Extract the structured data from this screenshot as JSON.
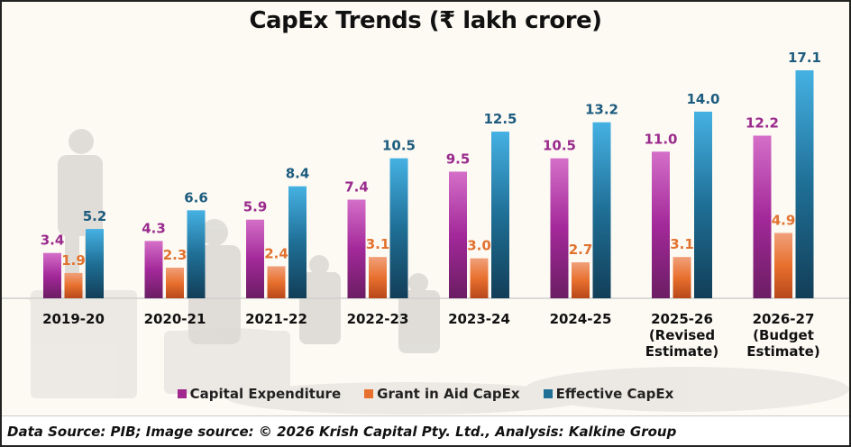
{
  "chart_data": {
    "type": "bar",
    "title": "CapEx Trends (₹ lakh crore)",
    "xlabel": "",
    "ylabel": "",
    "ylim": [
      0,
      17.1
    ],
    "grid": false,
    "legend_position": "bottom",
    "categories": [
      [
        "2019-20"
      ],
      [
        "2020-21"
      ],
      [
        "2021-22"
      ],
      [
        "2022-23"
      ],
      [
        "2023-24"
      ],
      [
        "2024-25"
      ],
      [
        "2025-26",
        "(Revised",
        "Estimate)"
      ],
      [
        "2026-27",
        "(Budget",
        "Estimate)"
      ]
    ],
    "series": [
      {
        "name": "Capital Expenditure",
        "color": "#a0288f",
        "label_color": "#9a2a8c",
        "values": [
          3.4,
          4.3,
          5.9,
          7.4,
          9.5,
          10.5,
          11.0,
          12.2
        ],
        "labels": [
          "3.4",
          "4.3",
          "5.9",
          "7.4",
          "9.5",
          "10.5",
          "11.0",
          "12.2"
        ]
      },
      {
        "name": "Grant in Aid CapEx",
        "color": "#e8702e",
        "label_color": "#e2722f",
        "values": [
          1.9,
          2.3,
          2.4,
          3.1,
          3.0,
          2.7,
          3.1,
          4.9
        ],
        "labels": [
          "1.9",
          "2.3",
          "2.4",
          "3.1",
          "3.0",
          "2.7",
          "3.1",
          "4.9"
        ]
      },
      {
        "name": "Effective CapEx",
        "color": "#1f6f96",
        "label_color": "#1d5c7e",
        "values": [
          5.2,
          6.6,
          8.4,
          10.5,
          12.5,
          13.2,
          14.0,
          17.1
        ],
        "labels": [
          "5.2",
          "6.6",
          "8.4",
          "10.5",
          "12.5",
          "13.2",
          "14.0",
          "17.1"
        ]
      }
    ]
  },
  "footer": {
    "text": "Data Source: PIB; Image source: © 2026 Krish Capital Pty. Ltd., Analysis: Kalkine Group"
  }
}
